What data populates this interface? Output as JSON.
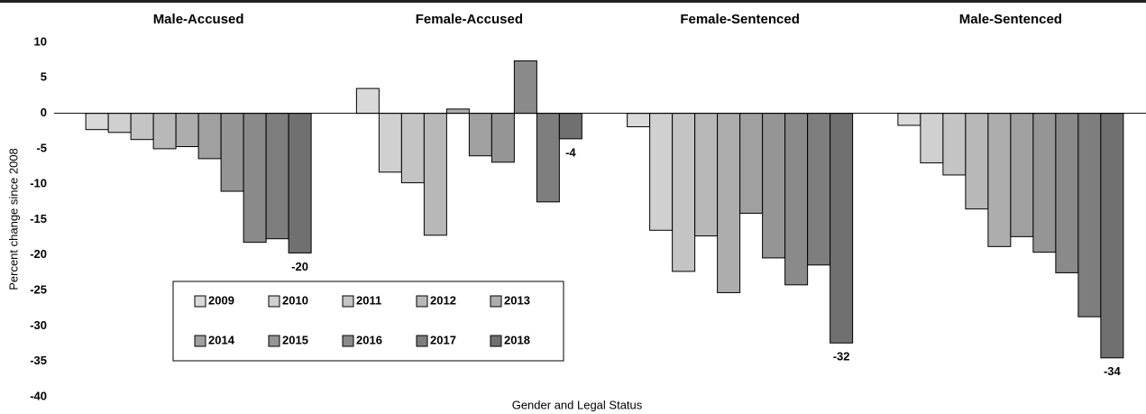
{
  "chart_data": {
    "type": "bar",
    "x_label": "Gender and Legal Status",
    "y_label": "Percent change since 2008",
    "categories": [
      "Male-Accused",
      "Female-Accused",
      "Female-Sentenced",
      "Male-Sentenced"
    ],
    "series": [
      {
        "name": "2009",
        "color": "#d9d9d9",
        "values": [
          -2.3,
          3.5,
          -1.9,
          -1.7
        ]
      },
      {
        "name": "2010",
        "color": "#d0d0d0",
        "values": [
          -2.7,
          -8.3,
          -16.5,
          -7.0
        ]
      },
      {
        "name": "2011",
        "color": "#c4c4c4",
        "values": [
          -3.7,
          -9.8,
          -22.3,
          -8.7
        ]
      },
      {
        "name": "2012",
        "color": "#b8b8b8",
        "values": [
          -5.0,
          -17.2,
          -17.3,
          -13.5
        ]
      },
      {
        "name": "2013",
        "color": "#adadad",
        "values": [
          -4.7,
          0.6,
          -25.3,
          -18.8
        ]
      },
      {
        "name": "2014",
        "color": "#a0a0a0",
        "values": [
          -6.4,
          -6.0,
          -14.1,
          -17.4
        ]
      },
      {
        "name": "2015",
        "color": "#959595",
        "values": [
          -11.0,
          -6.9,
          -20.4,
          -19.6
        ]
      },
      {
        "name": "2016",
        "color": "#8a8a8a",
        "values": [
          -18.2,
          7.4,
          -24.2,
          -22.5
        ]
      },
      {
        "name": "2017",
        "color": "#7e7e7e",
        "values": [
          -17.7,
          -12.5,
          -21.4,
          -28.7
        ]
      },
      {
        "name": "2018",
        "color": "#707070",
        "values": [
          -19.7,
          -3.6,
          -32.4,
          -34.5
        ],
        "value_labels": [
          "-20",
          "-4",
          "-32",
          "-34"
        ]
      }
    ],
    "ylim": [
      -40,
      10
    ],
    "yticks": [
      10,
      5,
      0,
      -5,
      -10,
      -15,
      -20,
      -25,
      -30,
      -35,
      -40
    ],
    "legend": "bottom-left"
  }
}
